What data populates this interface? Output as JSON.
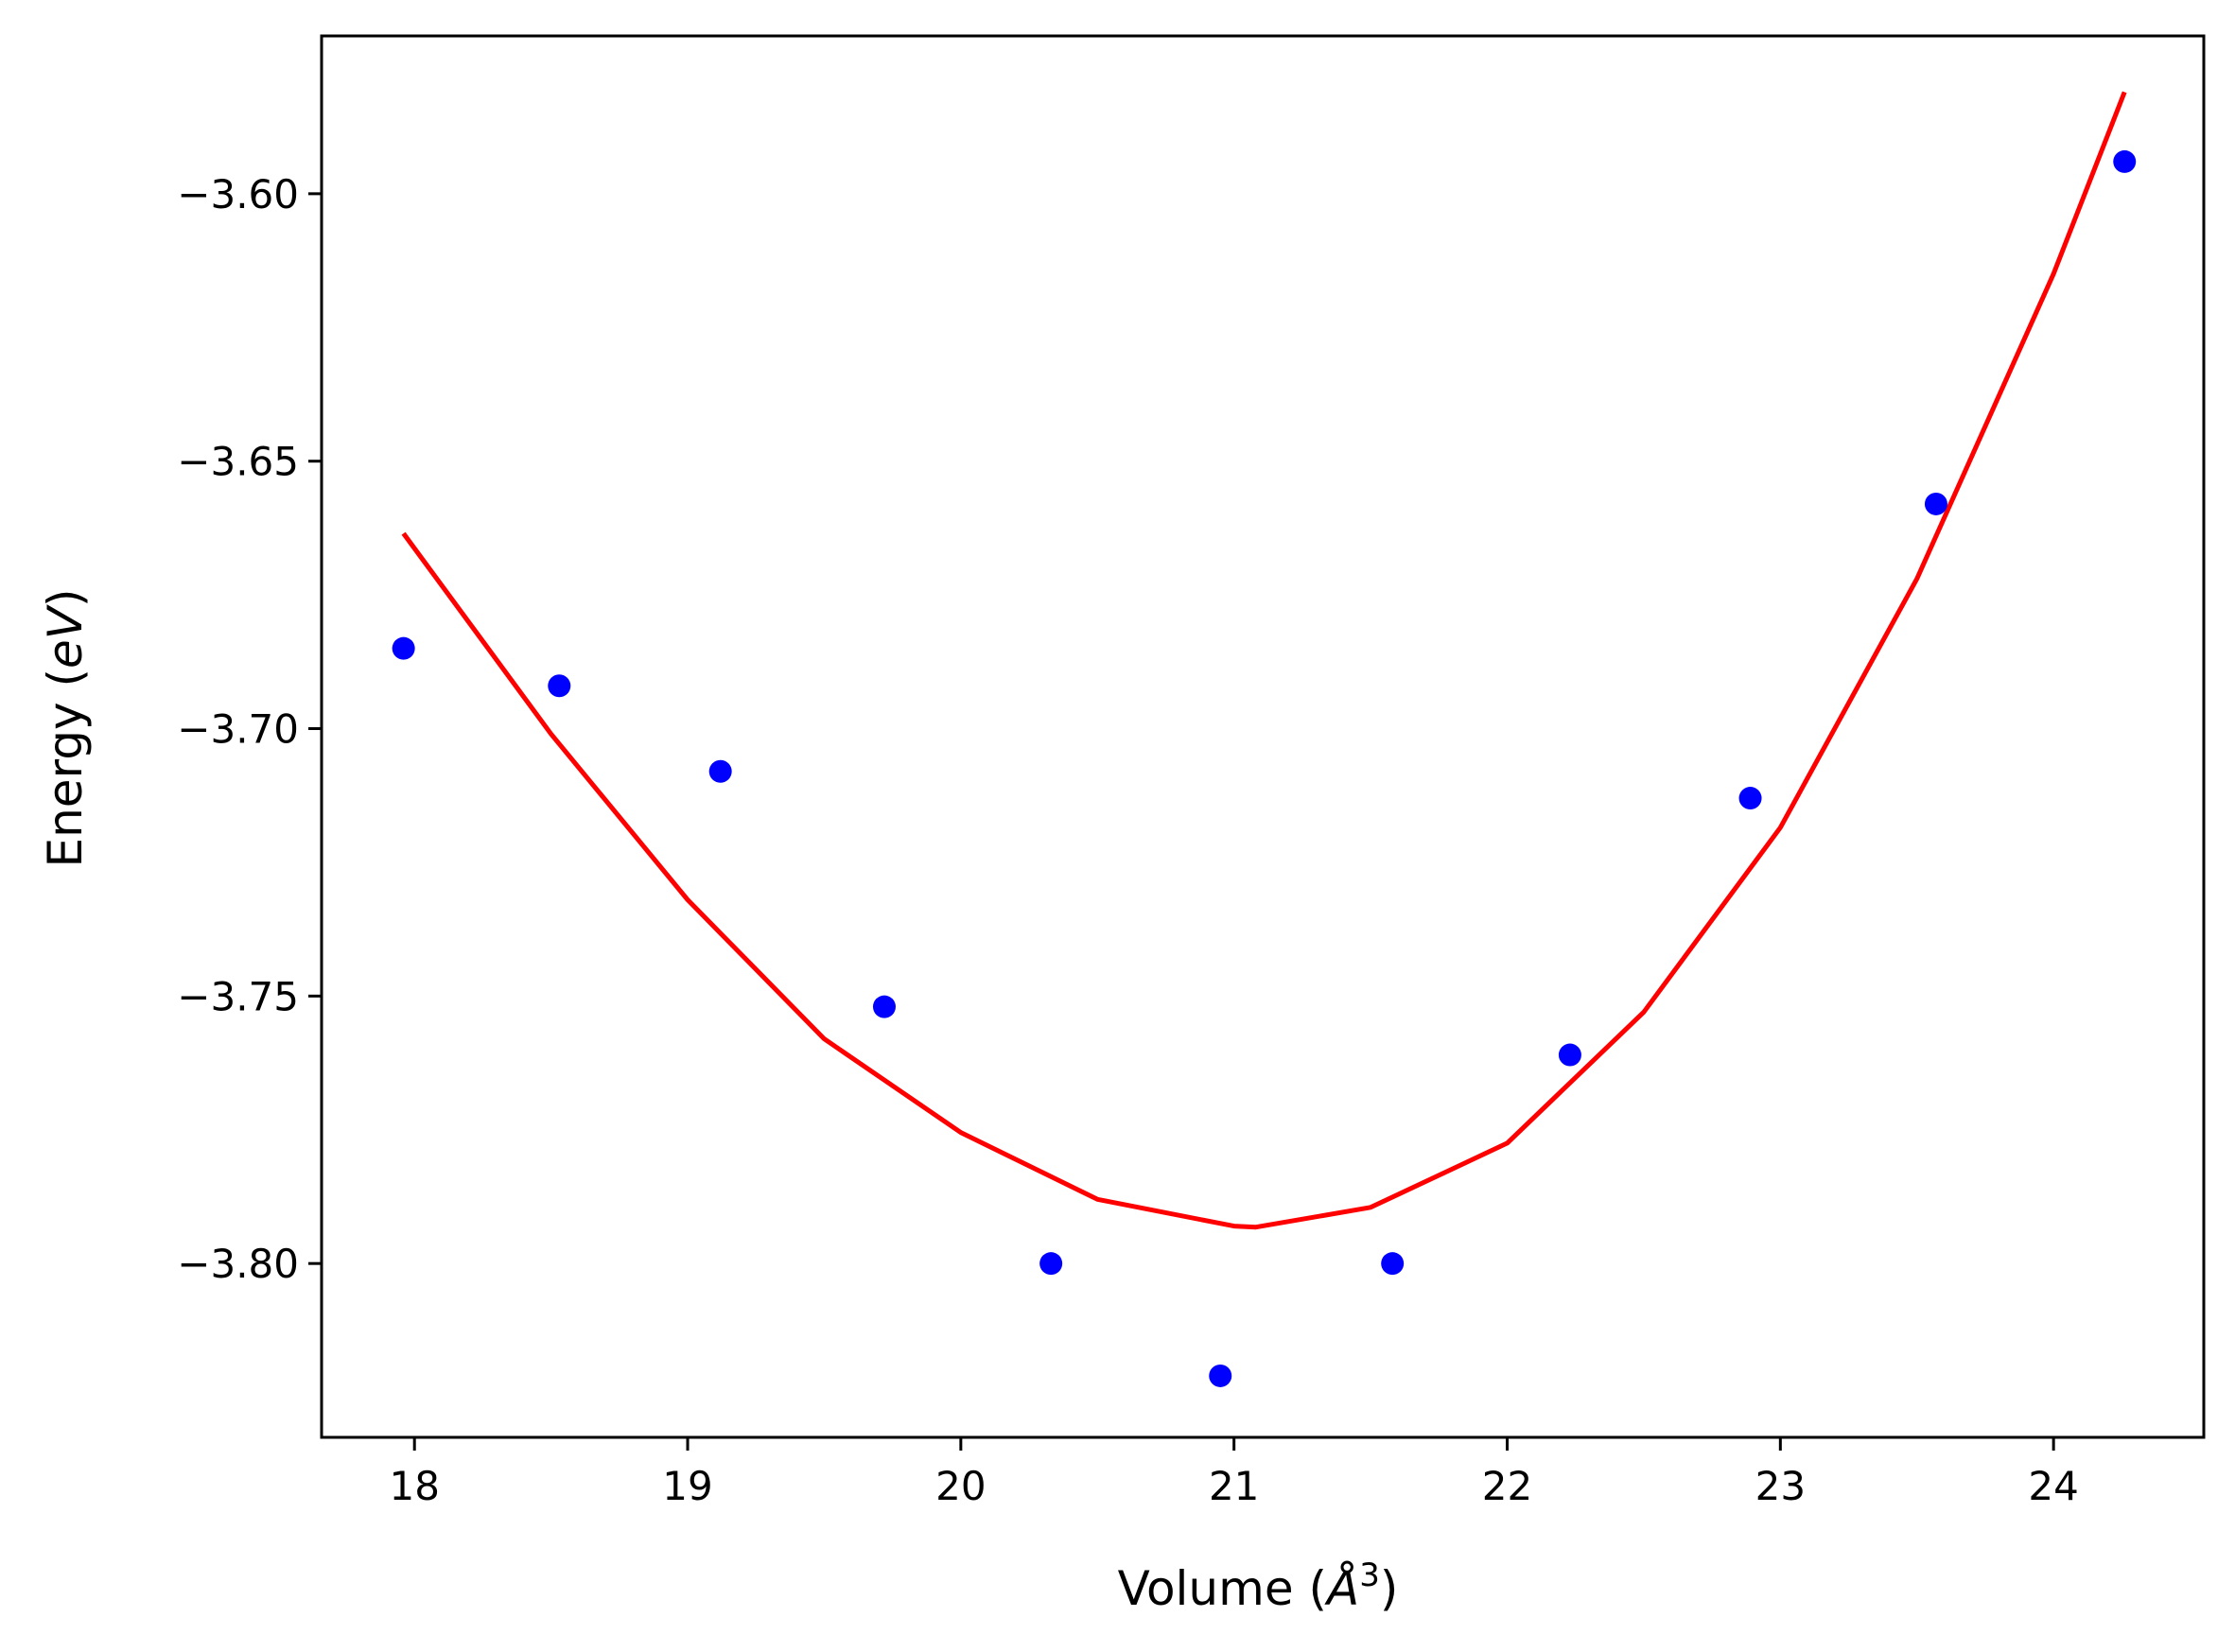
{
  "chart_data": {
    "type": "scatter",
    "title": "",
    "xlabel": {
      "prefix": "Volume (",
      "symbol": "Å",
      "sup": "3",
      "suffix": ")"
    },
    "ylabel": {
      "prefix": "Energy (",
      "unit": "eV",
      "suffix": ")"
    },
    "xlim": [
      17.66,
      24.55
    ],
    "ylim": [
      -3.8325,
      -3.5705
    ],
    "x_ticks": [
      {
        "value": 18,
        "label": "18"
      },
      {
        "value": 19,
        "label": "19"
      },
      {
        "value": 20,
        "label": "20"
      },
      {
        "value": 21,
        "label": "21"
      },
      {
        "value": 22,
        "label": "22"
      },
      {
        "value": 23,
        "label": "23"
      },
      {
        "value": 24,
        "label": "24"
      }
    ],
    "y_ticks": [
      {
        "value": -3.6,
        "label": "−3.60"
      },
      {
        "value": -3.65,
        "label": "−3.65"
      },
      {
        "value": -3.7,
        "label": "−3.70"
      },
      {
        "value": -3.75,
        "label": "−3.75"
      },
      {
        "value": -3.8,
        "label": "−3.80"
      }
    ],
    "grid": false,
    "series": [
      {
        "kind": "scatter",
        "color": "#0000ff",
        "points": [
          {
            "x": 17.96,
            "y": -3.685
          },
          {
            "x": 18.53,
            "y": -3.692
          },
          {
            "x": 19.12,
            "y": -3.708
          },
          {
            "x": 19.72,
            "y": -3.752
          },
          {
            "x": 20.33,
            "y": -3.8
          },
          {
            "x": 20.95,
            "y": -3.821
          },
          {
            "x": 21.58,
            "y": -3.8
          },
          {
            "x": 22.23,
            "y": -3.761
          },
          {
            "x": 22.89,
            "y": -3.713
          },
          {
            "x": 23.57,
            "y": -3.658
          },
          {
            "x": 24.26,
            "y": -3.594
          }
        ]
      },
      {
        "kind": "line",
        "color": "#ff0000",
        "points": [
          {
            "x": 17.96,
            "y": -3.6635
          },
          {
            "x": 18.5,
            "y": -3.701
          },
          {
            "x": 19.0,
            "y": -3.732
          },
          {
            "x": 19.5,
            "y": -3.758
          },
          {
            "x": 20.0,
            "y": -3.7755
          },
          {
            "x": 20.5,
            "y": -3.788
          },
          {
            "x": 21.0,
            "y": -3.793
          },
          {
            "x": 21.08,
            "y": -3.7932
          },
          {
            "x": 21.5,
            "y": -3.7895
          },
          {
            "x": 22.0,
            "y": -3.7775
          },
          {
            "x": 22.5,
            "y": -3.753
          },
          {
            "x": 23.0,
            "y": -3.7185
          },
          {
            "x": 23.5,
            "y": -3.672
          },
          {
            "x": 24.0,
            "y": -3.615
          },
          {
            "x": 24.26,
            "y": -3.581
          }
        ]
      }
    ]
  }
}
